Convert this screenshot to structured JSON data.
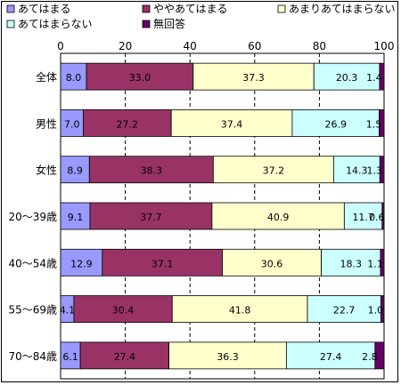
{
  "chart_data": {
    "type": "bar",
    "orientation": "horizontal",
    "stacked": true,
    "title": "",
    "xlabel": "",
    "ylabel": "",
    "xlim": [
      0,
      100
    ],
    "xticks": [
      0,
      20,
      40,
      60,
      80,
      100
    ],
    "grid": true,
    "legend_position": "top",
    "categories": [
      "全体",
      "男性",
      "女性",
      "20～39歳",
      "40～54歳",
      "55～69歳",
      "70～84歳"
    ],
    "series": [
      {
        "name": "あてはまる",
        "color": "#9999ff",
        "values": [
          8.0,
          7.0,
          8.9,
          9.1,
          12.9,
          4.1,
          6.1
        ],
        "labels": [
          "8.0",
          "7.0",
          "8.9",
          "9.1",
          "12.9",
          "4.1",
          "6.1"
        ]
      },
      {
        "name": "ややあてはまる",
        "color": "#993366",
        "values": [
          33.0,
          27.2,
          38.3,
          37.7,
          37.1,
          30.4,
          27.4
        ],
        "labels": [
          "33.0",
          "27.2",
          "38.3",
          "37.7",
          "37.1",
          "30.4",
          "27.4"
        ]
      },
      {
        "name": "あまりあてはまらない",
        "color": "#ffffcc",
        "values": [
          37.3,
          37.4,
          37.2,
          40.9,
          30.6,
          41.8,
          36.3
        ],
        "labels": [
          "37.3",
          "37.4",
          "37.2",
          "40.9",
          "30.6",
          "41.8",
          "36.3"
        ]
      },
      {
        "name": "あてはまらない",
        "color": "#ccffff",
        "values": [
          20.3,
          26.9,
          14.3,
          11.7,
          18.3,
          22.7,
          27.4
        ],
        "labels": [
          "20.3",
          "26.9",
          "14.3",
          "11.7",
          "18.3",
          "22.7",
          "27.4"
        ]
      },
      {
        "name": "無回答",
        "color": "#660066",
        "values": [
          1.4,
          1.5,
          1.3,
          0.6,
          1.1,
          1.0,
          2.8
        ],
        "labels": [
          "1.4",
          "1.5",
          "1.3",
          "0.6",
          "1.1",
          "1.0",
          "2.8"
        ]
      }
    ]
  }
}
